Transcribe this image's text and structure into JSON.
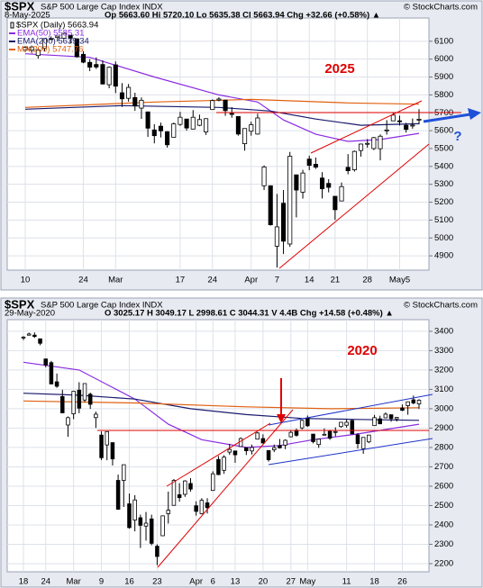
{
  "chart_data": [
    {
      "type": "candlestick",
      "symbol": "$SPX",
      "name": "S&P 500 Large Cap Index INDX",
      "source": "© StockCharts.com",
      "date": "8-May-2025",
      "quote": "Op 5663.60 Hi 5720.10 Lo 5635.38 Cl 5663.94 Chg +32.66 (+0.58%) ▲",
      "price_label": "$SPX (Daily) 5663.94",
      "annotation": "2025",
      "note": "?",
      "categories": [
        "10",
        null,
        null,
        null,
        null,
        null,
        null,
        null,
        null,
        "24",
        null,
        null,
        null,
        null,
        "Mar",
        null,
        null,
        null,
        null,
        null,
        null,
        null,
        null,
        null,
        "17",
        null,
        null,
        null,
        null,
        "24",
        null,
        null,
        null,
        null,
        null,
        "Apr",
        null,
        null,
        null,
        "7",
        null,
        null,
        null,
        null,
        "14",
        null,
        null,
        null,
        "21",
        null,
        null,
        null,
        null,
        "28",
        null,
        null,
        null,
        null,
        "May5",
        null,
        null,
        null
      ],
      "candles": [
        [
          6050,
          6073,
          6040,
          6066
        ],
        [
          6050,
          6076,
          6035,
          6068
        ],
        [
          6020,
          6063,
          6003,
          6051
        ],
        [
          6060,
          6116,
          6045,
          6115
        ],
        [
          6115,
          6127,
          6107,
          6114
        ],
        [
          6121,
          6129,
          6099,
          6129
        ],
        [
          6117,
          6147,
          6111,
          6144
        ],
        [
          6134,
          6134,
          6088,
          6117
        ],
        [
          6114,
          6115,
          6008,
          6013
        ],
        [
          6027,
          6044,
          5977,
          5983
        ],
        [
          5982,
          6000,
          5933,
          5955
        ],
        [
          5970,
          6010,
          5945,
          5956
        ],
        [
          5970,
          5993,
          5858,
          5861
        ],
        [
          5857,
          5959,
          5837,
          5955
        ],
        [
          5968,
          5987,
          5810,
          5849
        ],
        [
          5812,
          5866,
          5733,
          5778
        ],
        [
          5781,
          5861,
          5762,
          5842
        ],
        [
          5785,
          5812,
          5711,
          5738
        ],
        [
          5726,
          5786,
          5666,
          5770
        ],
        [
          5705,
          5705,
          5565,
          5614
        ],
        [
          5604,
          5636,
          5529,
          5572
        ],
        [
          5625,
          5645,
          5562,
          5599
        ],
        [
          5594,
          5597,
          5505,
          5521
        ],
        [
          5563,
          5645,
          5563,
          5638
        ],
        [
          5635,
          5705,
          5627,
          5675
        ],
        [
          5665,
          5666,
          5600,
          5615
        ],
        [
          5609,
          5715,
          5607,
          5675
        ],
        [
          5630,
          5690,
          5625,
          5662
        ],
        [
          5593,
          5670,
          5576,
          5667
        ],
        [
          5718,
          5775,
          5718,
          5768
        ],
        [
          5771,
          5787,
          5764,
          5777
        ],
        [
          5771,
          5773,
          5683,
          5712
        ],
        [
          5696,
          5732,
          5672,
          5693
        ],
        [
          5679,
          5679,
          5572,
          5581
        ],
        [
          5527,
          5613,
          5488,
          5612
        ],
        [
          5597,
          5650,
          5572,
          5633
        ],
        [
          5581,
          5695,
          5578,
          5671
        ],
        [
          5292,
          5406,
          5268,
          5397
        ],
        [
          5292,
          5292,
          5069,
          5074
        ],
        [
          4954,
          5246,
          4835,
          5062
        ],
        [
          5194,
          5268,
          4910,
          4982
        ],
        [
          4966,
          5481,
          4950,
          5457
        ],
        [
          5353,
          5353,
          5115,
          5268
        ],
        [
          5256,
          5381,
          5220,
          5363
        ],
        [
          5441,
          5460,
          5379,
          5406
        ],
        [
          5412,
          5450,
          5386,
          5396
        ],
        [
          5335,
          5368,
          5221,
          5275
        ],
        [
          5305,
          5329,
          5255,
          5283
        ],
        [
          5233,
          5233,
          5101,
          5158
        ],
        [
          5207,
          5310,
          5207,
          5287
        ],
        [
          5395,
          5469,
          5356,
          5376
        ],
        [
          5381,
          5489,
          5371,
          5484
        ],
        [
          5489,
          5528,
          5455,
          5525
        ],
        [
          5529,
          5553,
          5505,
          5529
        ],
        [
          5500,
          5565,
          5491,
          5561
        ],
        [
          5499,
          5579,
          5434,
          5569
        ],
        [
          5603,
          5659,
          5578,
          5604
        ],
        [
          5655,
          5700,
          5654,
          5687
        ],
        [
          5655,
          5684,
          5629,
          5650
        ],
        [
          5630,
          5644,
          5589,
          5607
        ],
        [
          5626,
          5668,
          5611,
          5631
        ],
        [
          5664,
          5720,
          5635,
          5664
        ]
      ],
      "overlays": [
        {
          "name": "EMA(50) 5585.31",
          "color": "#8a2be2",
          "x": [
            0,
            10,
            20,
            30,
            36,
            40,
            45,
            50,
            55,
            61
          ],
          "values": [
            6030,
            6010,
            5900,
            5800,
            5760,
            5660,
            5580,
            5540,
            5550,
            5585
          ]
        },
        {
          "name": "EMA(200) 5639.34",
          "color": "#1a1a6e",
          "x": [
            0,
            15,
            30,
            38,
            45,
            52,
            61
          ],
          "values": [
            5720,
            5740,
            5730,
            5710,
            5665,
            5630,
            5639
          ]
        },
        {
          "name": "MA(200) 5747.76",
          "color": "#e06010",
          "x": [
            0,
            20,
            35,
            50,
            61
          ],
          "values": [
            5730,
            5760,
            5775,
            5755,
            5748
          ]
        }
      ],
      "ylim": [
        4820,
        6230
      ],
      "yticks": [
        4900,
        5000,
        5100,
        5200,
        5300,
        5400,
        5500,
        5600,
        5700,
        5800,
        5900,
        6000,
        6100
      ],
      "grid": true
    },
    {
      "type": "candlestick",
      "symbol": "$SPX",
      "name": "S&P 500 Large Cap Index INDX",
      "source": "© StockCharts.com",
      "date": "29-May-2020",
      "quote": "O 3025.17 H 3049.17 L 2998.61 C 3044.31 V 4.4B Chg +14.58 (+0.48%) ▲",
      "annotation": "2020",
      "categories": [
        "18",
        null,
        null,
        null,
        "24",
        null,
        null,
        null,
        null,
        "Mar",
        null,
        null,
        null,
        null,
        "9",
        null,
        null,
        null,
        null,
        "16",
        null,
        null,
        null,
        null,
        "23",
        null,
        null,
        null,
        null,
        null,
        null,
        "Apr",
        null,
        null,
        "6",
        null,
        null,
        null,
        "13",
        null,
        null,
        null,
        null,
        "20",
        null,
        null,
        null,
        null,
        "27",
        null,
        null,
        "May",
        null,
        null,
        null,
        null,
        null,
        null,
        "11",
        null,
        null,
        null,
        null,
        "18",
        null,
        null,
        null,
        null,
        "26",
        null,
        null,
        null
      ],
      "candles": [
        [
          3370,
          3375,
          3355,
          3370
        ],
        [
          3380,
          3393,
          3378,
          3386
        ],
        [
          3380,
          3394,
          3366,
          3373
        ],
        [
          3361,
          3361,
          3328,
          3338
        ],
        [
          3257,
          3260,
          3214,
          3226
        ],
        [
          3238,
          3247,
          3127,
          3128
        ],
        [
          3139,
          3182,
          3108,
          3116
        ],
        [
          3063,
          3098,
          2977,
          2979
        ],
        [
          2916,
          2960,
          2855,
          2954
        ],
        [
          2974,
          3091,
          2946,
          3090
        ],
        [
          3096,
          3137,
          2977,
          3003
        ],
        [
          3045,
          3130,
          3034,
          3130
        ],
        [
          3075,
          3083,
          2999,
          3023
        ],
        [
          2954,
          2985,
          2901,
          2972
        ],
        [
          2864,
          2883,
          2735,
          2747
        ],
        [
          2813,
          2882,
          2734,
          2882
        ],
        [
          2825,
          2825,
          2707,
          2741
        ],
        [
          2630,
          2660,
          2478,
          2481
        ],
        [
          2630,
          2711,
          2493,
          2711
        ],
        [
          2509,
          2562,
          2381,
          2386
        ],
        [
          2425,
          2554,
          2367,
          2529
        ],
        [
          2437,
          2453,
          2281,
          2398
        ],
        [
          2394,
          2467,
          2319,
          2409
        ],
        [
          2431,
          2453,
          2295,
          2305
        ],
        [
          2290,
          2300,
          2192,
          2237
        ],
        [
          2344,
          2449,
          2344,
          2447
        ],
        [
          2458,
          2572,
          2407,
          2476
        ],
        [
          2501,
          2637,
          2501,
          2630
        ],
        [
          2556,
          2616,
          2520,
          2541
        ],
        [
          2558,
          2631,
          2545,
          2627
        ],
        [
          2614,
          2642,
          2572,
          2585
        ],
        [
          2499,
          2522,
          2448,
          2470
        ],
        [
          2458,
          2538,
          2455,
          2527
        ],
        [
          2514,
          2538,
          2459,
          2489
        ],
        [
          2578,
          2677,
          2576,
          2664
        ],
        [
          2738,
          2756,
          2657,
          2660
        ],
        [
          2682,
          2760,
          2664,
          2750
        ],
        [
          2776,
          2819,
          2762,
          2790
        ],
        [
          2782,
          2782,
          2721,
          2762
        ],
        [
          2805,
          2852,
          2805,
          2846
        ],
        [
          2799,
          2801,
          2761,
          2783
        ],
        [
          2782,
          2815,
          2764,
          2800
        ],
        [
          2843,
          2880,
          2842,
          2875
        ],
        [
          2846,
          2868,
          2821,
          2823
        ],
        [
          2784,
          2785,
          2727,
          2737
        ],
        [
          2788,
          2815,
          2776,
          2799
        ],
        [
          2810,
          2844,
          2794,
          2798
        ],
        [
          2812,
          2842,
          2791,
          2837
        ],
        [
          2855,
          2888,
          2852,
          2878
        ],
        [
          2889,
          2898,
          2856,
          2863
        ],
        [
          2901,
          2944,
          2893,
          2940
        ],
        [
          2951,
          2965,
          2906,
          2912
        ],
        [
          2869,
          2869,
          2821,
          2830
        ],
        [
          2815,
          2845,
          2798,
          2843
        ],
        [
          2866,
          2898,
          2863,
          2868
        ],
        [
          2883,
          2891,
          2839,
          2848
        ],
        [
          2879,
          2904,
          2858,
          2882
        ],
        [
          2908,
          2932,
          2902,
          2930
        ],
        [
          2915,
          2944,
          2903,
          2930
        ],
        [
          2939,
          2945,
          2869,
          2870
        ],
        [
          2865,
          2874,
          2794,
          2820
        ],
        [
          2794,
          2852,
          2767,
          2852
        ],
        [
          2829,
          2865,
          2822,
          2864
        ],
        [
          2913,
          2968,
          2913,
          2954
        ],
        [
          2948,
          2964,
          2922,
          2922
        ],
        [
          2953,
          2981,
          2953,
          2972
        ],
        [
          2969,
          2970,
          2933,
          2949
        ],
        [
          2948,
          2956,
          2934,
          2955
        ],
        [
          3004,
          3022,
          2988,
          2992
        ],
        [
          3016,
          3037,
          2969,
          3036
        ],
        [
          3046,
          3068,
          3023,
          3030
        ],
        [
          3025,
          3049,
          2999,
          3044
        ]
      ],
      "overlays": [
        {
          "color": "#8a2be2",
          "x": [
            0,
            10,
            20,
            26,
            32,
            40,
            46,
            52,
            60,
            71
          ],
          "values": [
            3240,
            3200,
            3050,
            2920,
            2840,
            2800,
            2810,
            2840,
            2870,
            2920
          ]
        },
        {
          "color": "#1a1a6e",
          "x": [
            0,
            10,
            20,
            30,
            40,
            50,
            60,
            71
          ],
          "values": [
            3080,
            3070,
            3050,
            3000,
            2970,
            2950,
            2945,
            2940
          ]
        },
        {
          "color": "#e06010",
          "x": [
            0,
            20,
            40,
            55,
            71
          ],
          "values": [
            3040,
            3030,
            3010,
            3000,
            3005
          ]
        }
      ],
      "ylim": [
        2158,
        3460
      ],
      "yticks": [
        2200,
        2300,
        2400,
        2500,
        2600,
        2700,
        2800,
        2900,
        3000,
        3100,
        3200,
        3300,
        3400
      ],
      "grid": true
    }
  ]
}
